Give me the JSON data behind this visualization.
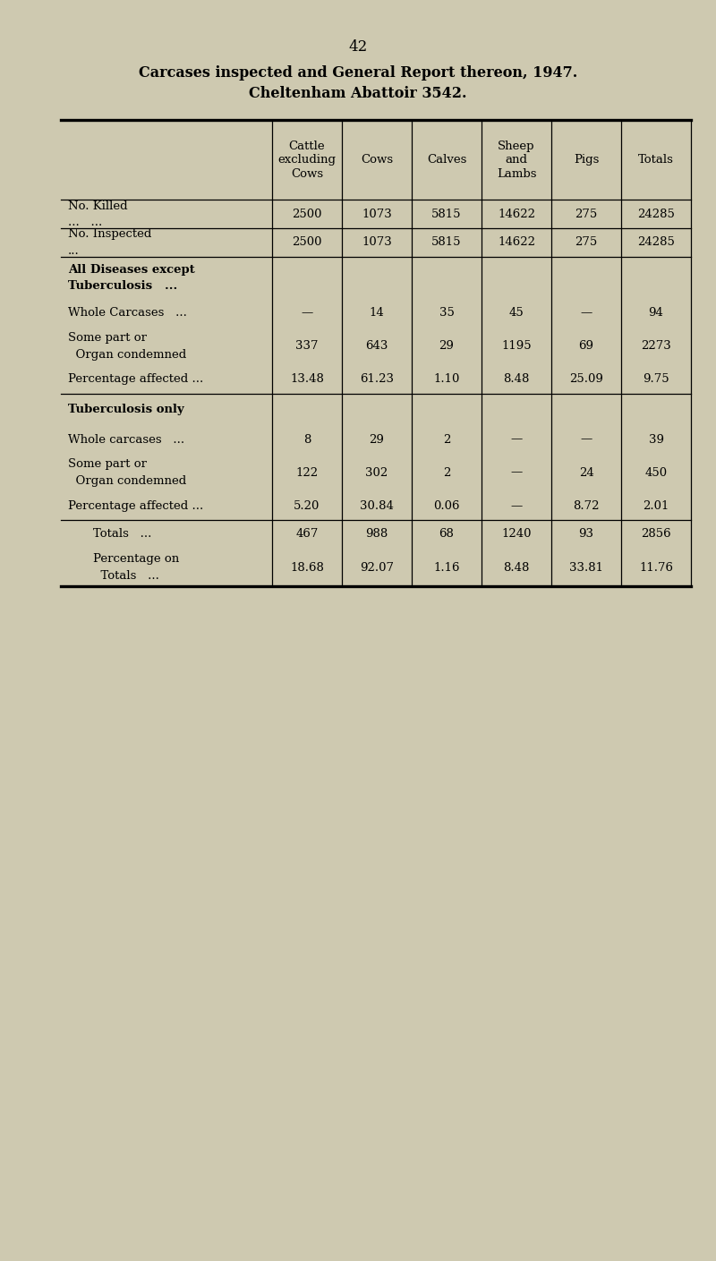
{
  "page_number": "42",
  "title_line1": "Carcases inspected and General Report thereon, 1947.",
  "title_line2": "Cheltenham Abattoir 3542.",
  "bg_color": "#cec9b0",
  "col_headers": [
    "Cattle\nexcluding\nCows",
    "Cows",
    "Calves",
    "Sheep\nand\nLambs",
    "Pigs",
    "Totals"
  ],
  "table_rows": [
    {
      "labels": [
        "No. Killed",
        "...   ..."
      ],
      "bold": false,
      "values": [
        "2500",
        "1073",
        "5815",
        "14622",
        "275",
        "24285"
      ],
      "border_below": true,
      "section_header": false,
      "indent": false
    },
    {
      "labels": [
        "No. Inspected",
        "..."
      ],
      "bold": false,
      "values": [
        "2500",
        "1073",
        "5815",
        "14622",
        "275",
        "24285"
      ],
      "border_below": true,
      "section_header": false,
      "indent": false
    },
    {
      "labels": [
        "All Diseases except",
        "Tuberculosis   ..."
      ],
      "bold": true,
      "values": [
        "",
        "",
        "",
        "",
        "",
        ""
      ],
      "border_below": false,
      "section_header": true,
      "indent": false
    },
    {
      "labels": [
        "Whole Carcases   ..."
      ],
      "bold": false,
      "values": [
        "—",
        "14",
        "35",
        "45",
        "—",
        "94"
      ],
      "border_below": false,
      "section_header": false,
      "indent": false
    },
    {
      "labels": [
        "Some part or",
        "  Organ condemned"
      ],
      "bold": false,
      "values": [
        "337",
        "643",
        "29",
        "1195",
        "69",
        "2273"
      ],
      "border_below": false,
      "section_header": false,
      "indent": false
    },
    {
      "labels": [
        "Percentage affected ..."
      ],
      "bold": false,
      "values": [
        "13.48",
        "61.23",
        "1.10",
        "8.48",
        "25.09",
        "9.75"
      ],
      "border_below": true,
      "section_header": false,
      "indent": false
    },
    {
      "labels": [
        "Tuberculosis only"
      ],
      "bold": true,
      "values": [
        "",
        "",
        "",
        "",
        "",
        ""
      ],
      "border_below": false,
      "section_header": true,
      "indent": false
    },
    {
      "labels": [
        "Whole carcases   ..."
      ],
      "bold": false,
      "values": [
        "8",
        "29",
        "2",
        "—",
        "—",
        "39"
      ],
      "border_below": false,
      "section_header": false,
      "indent": false
    },
    {
      "labels": [
        "Some part or",
        "  Organ condemned"
      ],
      "bold": false,
      "values": [
        "122",
        "302",
        "2",
        "—",
        "24",
        "450"
      ],
      "border_below": false,
      "section_header": false,
      "indent": false
    },
    {
      "labels": [
        "Percentage affected ..."
      ],
      "bold": false,
      "values": [
        "5.20",
        "30.84",
        "0.06",
        "—",
        "8.72",
        "2.01"
      ],
      "border_below": true,
      "section_header": false,
      "indent": false
    },
    {
      "labels": [
        "Totals   ..."
      ],
      "bold": false,
      "values": [
        "467",
        "988",
        "68",
        "1240",
        "93",
        "2856"
      ],
      "border_below": false,
      "section_header": false,
      "indent": true
    },
    {
      "labels": [
        "Percentage on",
        "  Totals   ..."
      ],
      "bold": false,
      "values": [
        "18.68",
        "92.07",
        "1.16",
        "8.48",
        "33.81",
        "11.76"
      ],
      "border_below": false,
      "section_header": false,
      "indent": true
    }
  ]
}
